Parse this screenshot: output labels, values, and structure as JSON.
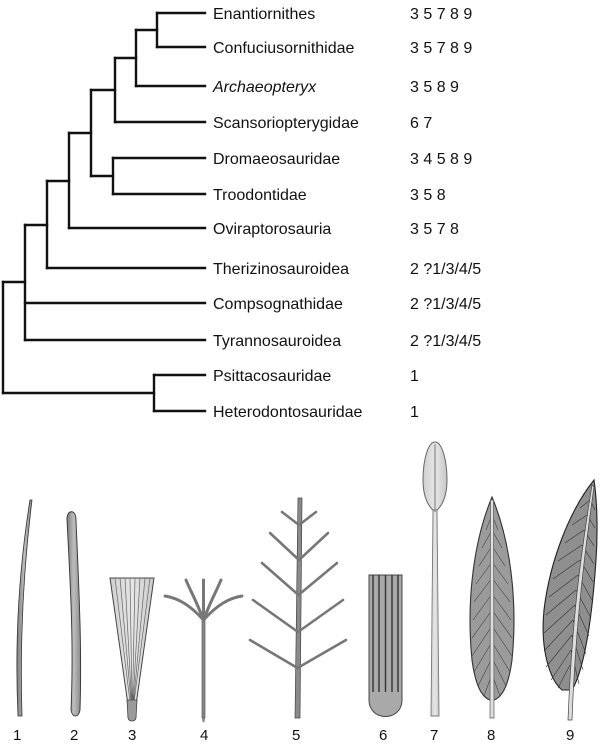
{
  "taxa": [
    {
      "name": "Enantiornithes",
      "codes": "3 5 7 8 9",
      "italic": false
    },
    {
      "name": "Confuciusornithidae",
      "codes": "3 5 7 8 9",
      "italic": false
    },
    {
      "name": "Archaeopteryx",
      "codes": "3 5 8 9",
      "italic": true
    },
    {
      "name": "Scansoriopterygidae",
      "codes": "6 7",
      "italic": false
    },
    {
      "name": "Dromaeosauridae",
      "codes": "3 4 5 8 9",
      "italic": false
    },
    {
      "name": "Troodontidae",
      "codes": "3 5 8",
      "italic": false
    },
    {
      "name": "Oviraptorosauria",
      "codes": "3 5 7 8",
      "italic": false
    },
    {
      "name": "Therizinosauroidea",
      "codes": "2 ?1/3/4/5",
      "italic": false
    },
    {
      "name": "Compsognathidae",
      "codes": "2 ?1/3/4/5",
      "italic": false
    },
    {
      "name": "Tyrannosauroidea",
      "codes": "2 ?1/3/4/5",
      "italic": false
    },
    {
      "name": "Psittacosauridae",
      "codes": "1",
      "italic": false
    },
    {
      "name": "Heterodontosauridae",
      "codes": "1",
      "italic": false
    }
  ],
  "feather_types": [
    {
      "number": "1",
      "icon": "filament-feather-icon"
    },
    {
      "number": "2",
      "icon": "broad-filament-feather-icon"
    },
    {
      "number": "3",
      "icon": "tuft-feather-icon"
    },
    {
      "number": "4",
      "icon": "rachis-barbs-feather-icon"
    },
    {
      "number": "5",
      "icon": "branched-feather-icon"
    },
    {
      "number": "6",
      "icon": "ribbon-feather-icon"
    },
    {
      "number": "7",
      "icon": "rachis-dominated-feather-icon"
    },
    {
      "number": "8",
      "icon": "symmetric-pennaceous-feather-icon"
    },
    {
      "number": "9",
      "icon": "asymmetric-pennaceous-feather-icon"
    }
  ]
}
